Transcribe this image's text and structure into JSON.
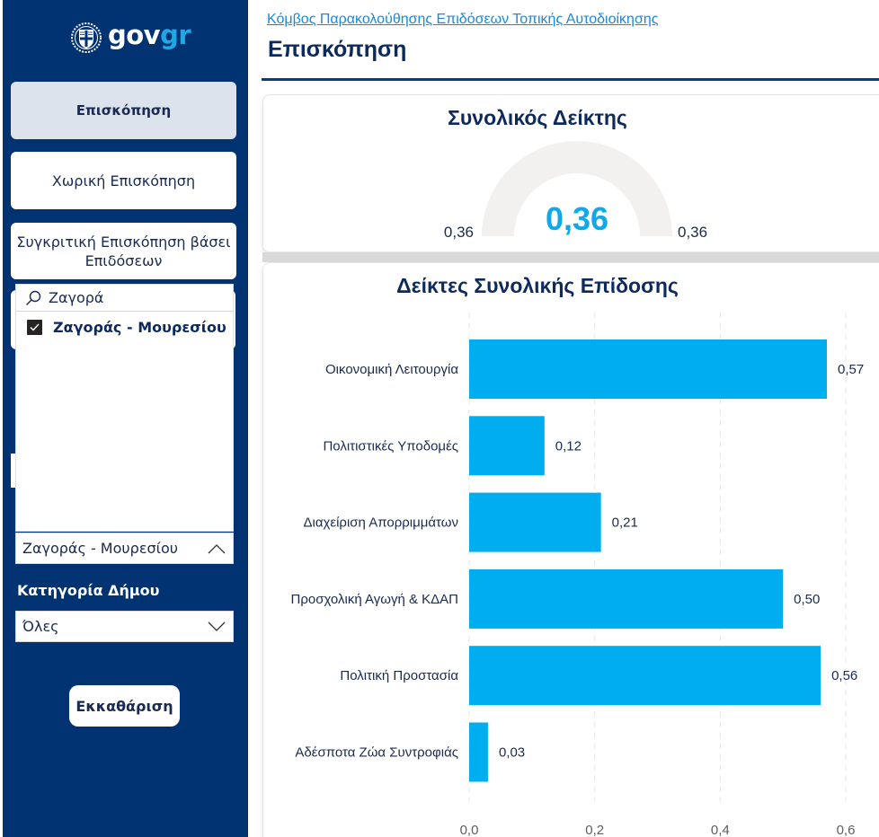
{
  "sidebar": {
    "logo": {
      "icon": "greek-emblem-icon",
      "text_gov": "gov",
      "text_gr": "gr"
    },
    "nav": [
      {
        "label": "Επισκόπηση",
        "active": true
      },
      {
        "label": "Χωρική Επισκόπηση",
        "active": false
      },
      {
        "label": "Συγκριτική Επισκόπηση βάσει Επιδόσεων",
        "active": false
      }
    ],
    "municipality_slicer": {
      "search_value": "Ζαγορά",
      "search_icon": "search-icon",
      "options": [
        {
          "label": "Ζαγοράς - Μουρεσίου",
          "checked": true
        }
      ],
      "selected_value": "Ζαγοράς - Μουρεσίου",
      "expanded": true
    },
    "category_filter": {
      "label": "Κατηγορία Δήμου",
      "selected_value": "Όλες",
      "expanded": false
    },
    "clear_button": "Εκκαθάριση"
  },
  "header": {
    "breadcrumb": "Κόμβος Παρακολούθησης Επιδόσεων Τοπικής Αυτοδιοίκησης",
    "title": "Επισκόπηση"
  },
  "gauge": {
    "title": "Συνολικός Δείκτης",
    "value_label": "0,36",
    "min_label": "0,36",
    "max_label": "0,36",
    "value": 0.36,
    "min": 0.36,
    "max": 0.36,
    "track_color": "#f2f1f0",
    "value_color": "#0fa8e8"
  },
  "chart_data": {
    "type": "bar",
    "orientation": "horizontal",
    "title": "Δείκτες Συνολικής Επίδοσης",
    "categories": [
      "Οικονομική Λειτουργία",
      "Πολιτιστικές Υποδομές",
      "Διαχείριση Απορριμμάτων",
      "Προσχολική Αγωγή & ΚΔΑΠ",
      "Πολιτική Προστασία",
      "Αδέσποτα Ζώα Συντροφιάς"
    ],
    "values": [
      0.57,
      0.12,
      0.21,
      0.5,
      0.56,
      0.03
    ],
    "value_labels": [
      "0,57",
      "0,12",
      "0,21",
      "0,50",
      "0,56",
      "0,03"
    ],
    "xlim": [
      0,
      0.6
    ],
    "x_ticks": [
      0.0,
      0.2,
      0.4,
      0.6
    ],
    "x_tick_labels": [
      "0,0",
      "0,2",
      "0,4",
      "0,6"
    ],
    "xlabel": "",
    "ylabel": "",
    "grid": "vertical-dashed",
    "legend": "none",
    "bar_color": "#00adee"
  }
}
